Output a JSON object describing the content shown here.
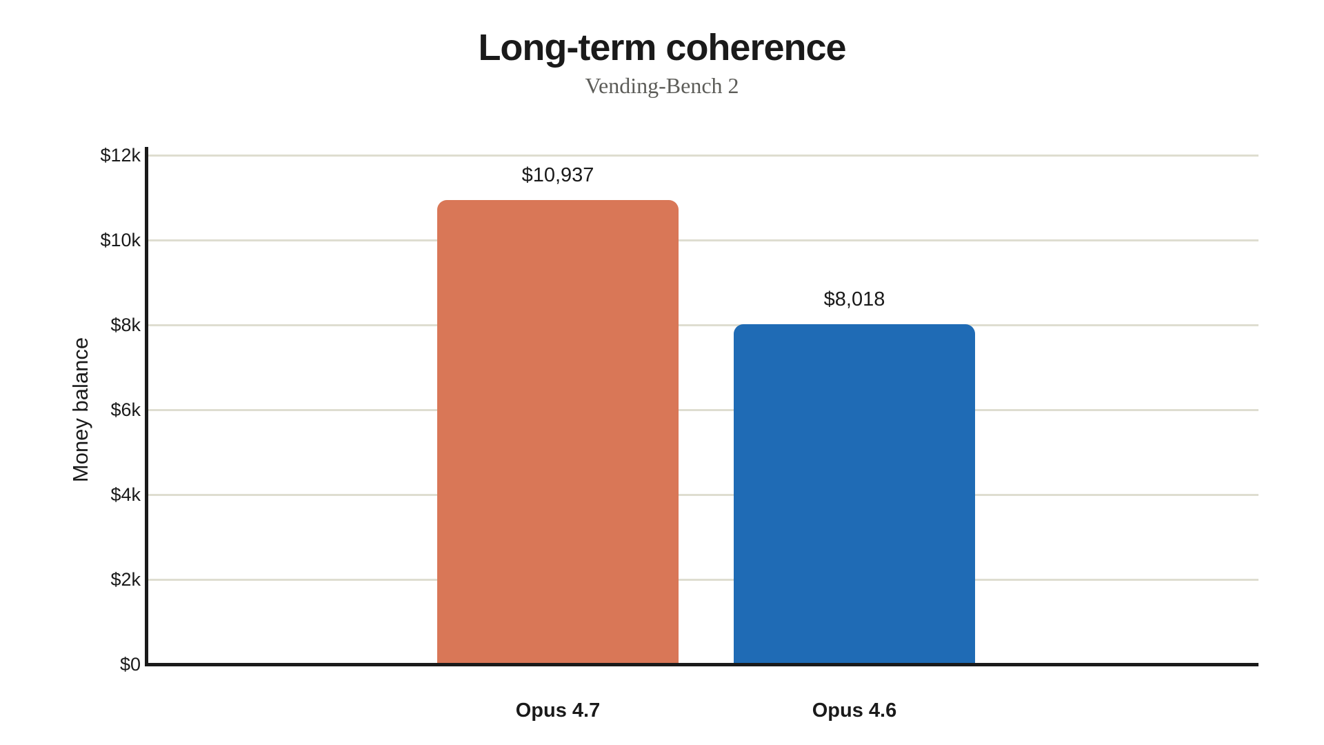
{
  "chart_data": {
    "type": "bar",
    "title": "Long-term coherence",
    "subtitle": "Vending-Bench 2",
    "ylabel": "Money balance",
    "xlabel": "",
    "categories": [
      "Opus 4.7",
      "Opus 4.6"
    ],
    "values": [
      10937,
      8018
    ],
    "value_labels": [
      "$10,937",
      "$8,018"
    ],
    "bar_colors": [
      "#d97757",
      "#1f6bb5"
    ],
    "ylim": [
      0,
      12000
    ],
    "yticks": [
      0,
      2000,
      4000,
      6000,
      8000,
      10000,
      12000
    ],
    "ytick_labels": [
      "$0",
      "$2k",
      "$4k",
      "$6k",
      "$8k",
      "$10k",
      "$12k"
    ],
    "grid": "horizontal-major-only",
    "legend": "none",
    "style": {
      "gridline_color": "#deddd0",
      "axis_color": "#1a1a1a",
      "title_color": "#1a1a1a",
      "subtitle_color": "#5c5c58",
      "background_color": "#ffffff"
    }
  }
}
